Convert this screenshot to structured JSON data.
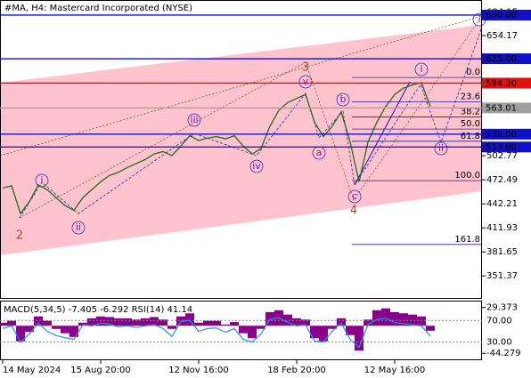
{
  "chart_data": {
    "type": "line",
    "title": "#MA, H4:  Mastercard Incorporated (NYSE)",
    "categories": [
      "14 May 2024",
      null,
      null,
      null,
      null,
      null,
      null,
      null,
      null,
      null,
      null,
      "15 Aug 20:00",
      null,
      null,
      null,
      null,
      null,
      null,
      null,
      null,
      null,
      null,
      "12 Nov 16:00",
      null,
      null,
      null,
      null,
      null,
      null,
      null,
      null,
      null,
      null,
      "18 Feb 20:00",
      null,
      null,
      null,
      null,
      null,
      null,
      null,
      null,
      null,
      null,
      "12 May 16:00",
      null,
      null,
      null,
      null
    ],
    "values": [
      462,
      465,
      430,
      445,
      466,
      460,
      450,
      440,
      434,
      450,
      460,
      470,
      478,
      482,
      488,
      493,
      498,
      505,
      508,
      503,
      515,
      528,
      522,
      525,
      527,
      524,
      528,
      515,
      505,
      512,
      540,
      560,
      570,
      575,
      580,
      545,
      527,
      540,
      558,
      520,
      470,
      520,
      545,
      565,
      580,
      588,
      592,
      595,
      565
    ],
    "color": "#1f6b1f",
    "ylim": [
      322.5,
      699
    ],
    "yticks": [
      684.15,
      654.17,
      502.77,
      472.49,
      442.21,
      411.93,
      381.65,
      351.37
    ],
    "levels": [
      {
        "value": 680,
        "label": "680.00",
        "color": "#1010c8"
      },
      {
        "value": 625,
        "label": "625.00",
        "color": "#1010c8"
      },
      {
        "value": 594.3,
        "label": "594.30",
        "color": "#e01010"
      },
      {
        "value": 563.01,
        "label": "563.01",
        "color": "#a0a0a0"
      },
      {
        "value": 530,
        "label": "530.00",
        "color": "#1010c8"
      },
      {
        "value": 513.8,
        "label": "513.80",
        "color": "#1010c8"
      }
    ],
    "fib_0": 601.4,
    "fib_100": 471.4,
    "fib_levels": [
      {
        "value": 0,
        "label": "0.0"
      },
      23.6,
      38.2,
      {
        "value": 50,
        "label": "50.0"
      },
      61.8,
      {
        "value": 100,
        "label": "100.0"
      },
      161.8
    ],
    "waves": [
      "2",
      "i",
      "ii",
      "iii",
      "iv",
      "v",
      "3",
      "a",
      "b",
      "c",
      "4",
      "i",
      "ii",
      "i"
    ],
    "indicator": {
      "label": "MACD(5,34,5) -7.405 -6.292 RSI(14) 41.14",
      "macd": [
        5,
        8,
        -25,
        -10,
        15,
        8,
        -5,
        -12,
        -18,
        5,
        12,
        15,
        14,
        12,
        12,
        10,
        12,
        14,
        10,
        -5,
        15,
        20,
        5,
        8,
        8,
        2,
        6,
        -12,
        -20,
        -5,
        22,
        25,
        18,
        12,
        10,
        -20,
        -25,
        -5,
        12,
        -15,
        -40,
        10,
        25,
        28,
        22,
        20,
        18,
        15,
        -8
      ],
      "rsi": [
        55,
        60,
        30,
        45,
        65,
        50,
        42,
        38,
        35,
        62,
        60,
        65,
        63,
        58,
        60,
        57,
        60,
        62,
        55,
        40,
        68,
        70,
        50,
        55,
        56,
        48,
        55,
        35,
        30,
        45,
        72,
        75,
        66,
        60,
        62,
        32,
        30,
        50,
        65,
        35,
        20,
        62,
        72,
        74,
        66,
        64,
        62,
        60,
        41.14
      ],
      "macd_color": "#8b008b",
      "rsi_color": "#1e90ff",
      "macd_lim": [
        -54,
        39
      ],
      "macd_ticks": [
        29.373,
        -44.279
      ],
      "rsi_lim": [
        -2,
        105
      ],
      "rsi_ticks": [
        {
          "value": 70,
          "label": "70.00"
        },
        {
          "value": 30,
          "label": "30.00"
        }
      ]
    }
  }
}
